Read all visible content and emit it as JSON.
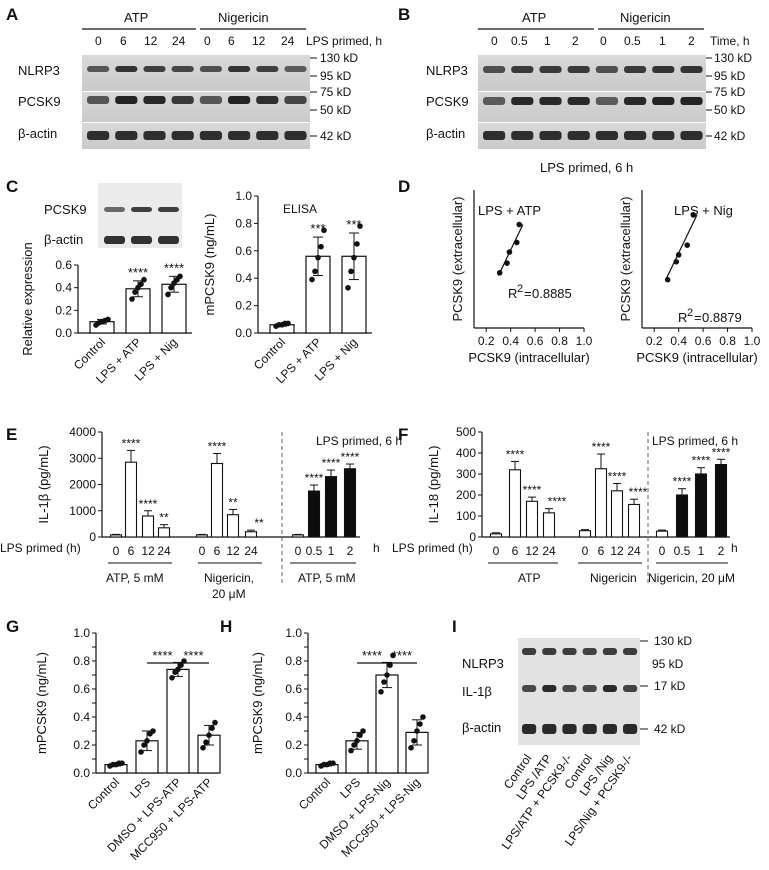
{
  "panel_labels": {
    "A": "A",
    "B": "B",
    "C": "C",
    "D": "D",
    "E": "E",
    "F": "F",
    "G": "G",
    "H": "H",
    "I": "I"
  },
  "panelA": {
    "groups": [
      "ATP",
      "Nigericin"
    ],
    "header_suffix": "LPS primed, h",
    "times": [
      "0",
      "6",
      "12",
      "24",
      "0",
      "6",
      "12",
      "24"
    ],
    "rows": [
      "NLRP3",
      "PCSK9",
      "β-actin"
    ],
    "mw": [
      "130 kD",
      "95 kD",
      "75 kD",
      "50 kD",
      "42 kD"
    ]
  },
  "panelB": {
    "groups": [
      "ATP",
      "Nigericin"
    ],
    "header_suffix": "Time, h",
    "times": [
      "0",
      "0.5",
      "1",
      "2",
      "0",
      "0.5",
      "1",
      "2"
    ],
    "rows": [
      "NLRP3",
      "PCSK9",
      "β-actin"
    ],
    "mw": [
      "130 kD",
      "95 kD",
      "75 kD",
      "50 kD",
      "42 kD"
    ],
    "caption": "LPS primed, 6 h"
  },
  "panelC": {
    "blot_rows": [
      "PCSK9",
      "β-actin"
    ],
    "star": "****",
    "sig3": "***",
    "elisa": "ELISA"
  },
  "panelD": {
    "r2_atp": "0.8885",
    "r2_nig": "0.8879"
  },
  "panelE": {
    "stars4": "****",
    "stars2": "**",
    "lps_primed_h": "LPS primed (h)",
    "inset": "LPS primed, 6 h",
    "group1": "ATP, 5 mM",
    "group2": "Nigericin,",
    "group2b": "20 μM",
    "group3": "ATP, 5 mM",
    "h": "h"
  },
  "panelF": {
    "stars4": "****",
    "lps_primed_h": "LPS primed (h)",
    "inset": "LPS primed, 6 h",
    "group1": "ATP",
    "group2": "Nigericin",
    "group3": "Nigericin, 20 μM",
    "h": "h"
  },
  "panelGH": {
    "stars": "****"
  },
  "panelI": {
    "rows": [
      "NLRP3",
      "IL-1β",
      "β-actin"
    ],
    "mw": [
      "130 kD",
      "95 kD",
      "17 kD",
      "42 kD"
    ],
    "lanes": [
      "Control",
      "LPS /ATP",
      "LPS/ATP + PCSK9-/-",
      "Control",
      "LPS /Nig",
      "LPS/Nig + PCSK9-/-"
    ]
  },
  "chart_data": [
    {
      "id": "C-relative",
      "type": "bar",
      "ylabel": "Relative expression",
      "categories": [
        "Control",
        "LPS + ATP",
        "LPS + Nig"
      ],
      "values": [
        0.1,
        0.39,
        0.43
      ],
      "errors": [
        0.02,
        0.07,
        0.07
      ],
      "ylim": [
        0,
        0.6
      ],
      "yticks": [
        "0.0",
        "0.2",
        "0.4",
        "0.6"
      ],
      "ytickvals": [
        0,
        0.2,
        0.4,
        0.6
      ],
      "points": [
        [
          0.07,
          0.09,
          0.1,
          0.11,
          0.12
        ],
        [
          0.3,
          0.36,
          0.4,
          0.43,
          0.47
        ],
        [
          0.34,
          0.4,
          0.44,
          0.47,
          0.5
        ]
      ]
    },
    {
      "id": "C-elisa",
      "type": "bar",
      "ylabel": "mPCSK9 (ng/mL)",
      "categories": [
        "Control",
        "LPS + ATP",
        "LPS + Nig"
      ],
      "values": [
        0.06,
        0.56,
        0.56
      ],
      "errors": [
        0.01,
        0.14,
        0.17
      ],
      "ylim": [
        0,
        1.0
      ],
      "yticks": [
        "0.0",
        "0.2",
        "0.4",
        "0.6",
        "0.8",
        "1.0"
      ],
      "ytickvals": [
        0,
        0.2,
        0.4,
        0.6,
        0.8,
        1.0
      ],
      "points": [
        [
          0.05,
          0.06,
          0.06,
          0.07,
          0.07
        ],
        [
          0.39,
          0.45,
          0.55,
          0.63,
          0.75
        ],
        [
          0.33,
          0.45,
          0.55,
          0.65,
          0.78
        ]
      ]
    },
    {
      "id": "D-atp",
      "type": "scatter",
      "title": "LPS + ATP",
      "xlabel": "PCSK9 (intracellular)",
      "ylabel": "PCSK9 (extracellular)",
      "xticks": [
        "0.2",
        "0.4",
        "0.6",
        "0.8",
        "1.0"
      ],
      "xtickvals": [
        0.2,
        0.4,
        0.6,
        0.8,
        1.0
      ],
      "xlim": [
        0.2,
        1.0
      ],
      "ylim": [
        0,
        1.0
      ],
      "x": [
        0.31,
        0.37,
        0.39,
        0.45,
        0.47
      ],
      "y": [
        0.4,
        0.47,
        0.55,
        0.62,
        0.75
      ],
      "fit": [
        [
          0.3,
          0.38
        ],
        [
          0.5,
          0.75
        ]
      ]
    },
    {
      "id": "D-nig",
      "type": "scatter",
      "title": "LPS + Nig",
      "xlabel": "PCSK9 (intracellular)",
      "ylabel": "PCSK9 (extracellular)",
      "xticks": [
        "0.2",
        "0.4",
        "0.6",
        "0.8",
        "1.0"
      ],
      "xtickvals": [
        0.2,
        0.4,
        0.6,
        0.8,
        1.0
      ],
      "xlim": [
        0.2,
        1.0
      ],
      "ylim": [
        0,
        1.0
      ],
      "x": [
        0.31,
        0.38,
        0.4,
        0.47,
        0.52
      ],
      "y": [
        0.35,
        0.48,
        0.53,
        0.6,
        0.82
      ],
      "fit": [
        [
          0.3,
          0.36
        ],
        [
          0.55,
          0.82
        ]
      ]
    },
    {
      "id": "E",
      "type": "bar",
      "ylabel": "IL-1β (pg/mL)",
      "ylim": [
        0,
        4000
      ],
      "yticks": [
        "0",
        "1000",
        "2000",
        "3000",
        "4000"
      ],
      "ytickvals": [
        0,
        1000,
        2000,
        3000,
        4000
      ],
      "categories": [
        "0",
        "6",
        "12",
        "24",
        "0",
        "6",
        "12",
        "24",
        "0",
        "0.5",
        "1",
        "2"
      ],
      "values": [
        80,
        2850,
        800,
        350,
        80,
        2800,
        850,
        200,
        80,
        1750,
        2300,
        2600
      ],
      "errors": [
        20,
        450,
        200,
        120,
        20,
        380,
        200,
        60,
        20,
        230,
        250,
        180
      ],
      "filled": [
        false,
        false,
        false,
        false,
        false,
        false,
        false,
        false,
        false,
        true,
        true,
        true
      ]
    },
    {
      "id": "F",
      "type": "bar",
      "ylabel": "IL-18 (pg/mL)",
      "ylim": [
        0,
        500
      ],
      "yticks": [
        "0",
        "100",
        "200",
        "300",
        "400",
        "500"
      ],
      "ytickvals": [
        0,
        100,
        200,
        300,
        400,
        500
      ],
      "categories": [
        "0",
        "6",
        "12",
        "24",
        "0",
        "6",
        "12",
        "24",
        "0",
        "0.5",
        "1",
        "2"
      ],
      "values": [
        15,
        320,
        170,
        115,
        30,
        325,
        220,
        155,
        28,
        200,
        300,
        345
      ],
      "errors": [
        5,
        40,
        20,
        20,
        5,
        70,
        35,
        25,
        5,
        30,
        30,
        25
      ],
      "filled": [
        false,
        false,
        false,
        false,
        false,
        false,
        false,
        false,
        false,
        true,
        true,
        true
      ]
    },
    {
      "id": "G",
      "type": "bar",
      "ylabel": "mPCSK9 (ng/mL)",
      "xlabels": [
        "Control",
        "LPS",
        "DMSO + LPS-ATP",
        "MCC950 + LPS-ATP"
      ],
      "values": [
        0.06,
        0.23,
        0.74,
        0.27
      ],
      "errors": [
        0.01,
        0.07,
        0.05,
        0.07
      ],
      "ylim": [
        0,
        1.0
      ],
      "yticks": [
        "0.0",
        "0.1",
        "0.2",
        "0.3",
        "0.4",
        "0.5",
        "0.6",
        "0.7",
        "0.8",
        "0.9",
        "1.0"
      ],
      "ytickvals": [
        0,
        0.1,
        0.2,
        0.3,
        0.4,
        0.5,
        0.6,
        0.7,
        0.8,
        0.9,
        1.0
      ],
      "labelled_ticks": [
        "0.0",
        "0.2",
        "0.4",
        "0.6",
        "0.8",
        "1.0"
      ],
      "points": [
        [
          0.05,
          0.06,
          0.06,
          0.07,
          0.07
        ],
        [
          0.15,
          0.2,
          0.23,
          0.28,
          0.3
        ],
        [
          0.68,
          0.72,
          0.74,
          0.77,
          0.8
        ],
        [
          0.18,
          0.22,
          0.27,
          0.32,
          0.36
        ]
      ]
    },
    {
      "id": "H",
      "type": "bar",
      "ylabel": "mPCSK9 (ng/mL)",
      "xlabels": [
        "Control",
        "LPS",
        "DMSO + LPS-Nig",
        "MCC950 + LPS-Nig"
      ],
      "values": [
        0.06,
        0.23,
        0.7,
        0.29
      ],
      "errors": [
        0.01,
        0.06,
        0.09,
        0.09
      ],
      "ylim": [
        0,
        1.0
      ],
      "yticks": [
        "0.0",
        "0.1",
        "0.2",
        "0.3",
        "0.4",
        "0.5",
        "0.6",
        "0.7",
        "0.8",
        "0.9",
        "1.0"
      ],
      "ytickvals": [
        0,
        0.1,
        0.2,
        0.3,
        0.4,
        0.5,
        0.6,
        0.7,
        0.8,
        0.9,
        1.0
      ],
      "labelled_ticks": [
        "0.0",
        "0.2",
        "0.4",
        "0.6",
        "0.8",
        "1.0"
      ],
      "points": [
        [
          0.05,
          0.06,
          0.06,
          0.07,
          0.07
        ],
        [
          0.16,
          0.2,
          0.23,
          0.27,
          0.3
        ],
        [
          0.58,
          0.65,
          0.7,
          0.77,
          0.84
        ],
        [
          0.18,
          0.23,
          0.3,
          0.35,
          0.4
        ]
      ]
    }
  ]
}
